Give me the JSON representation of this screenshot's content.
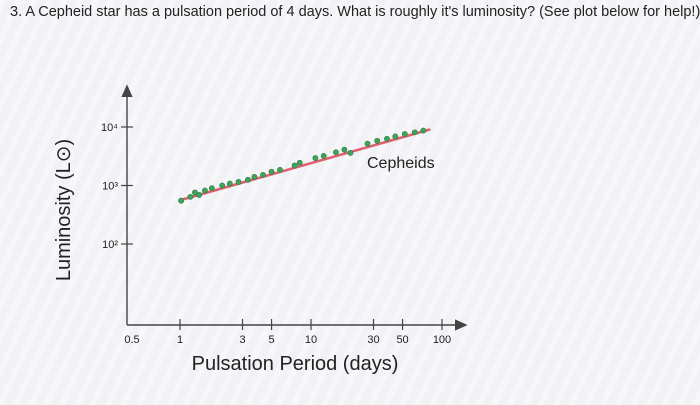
{
  "question": {
    "text": "3. A Cepheid star has a pulsation period of 4 days. What is roughly it's luminosity? (See plot below for help!)"
  },
  "chart_data": {
    "type": "scatter",
    "title": "",
    "xlabel": "Pulsation Period (days)",
    "ylabel": "Luminosity (L⊙)",
    "x_scale": "log",
    "y_scale": "log",
    "xlim": [
      0.5,
      100
    ],
    "x_ticks": [
      {
        "value": 0.5,
        "label": "0.5"
      },
      {
        "value": 1,
        "label": "1"
      },
      {
        "value": 3,
        "label": "3"
      },
      {
        "value": 5,
        "label": "5"
      },
      {
        "value": 10,
        "label": "10"
      },
      {
        "value": 30,
        "label": "30"
      },
      {
        "value": 50,
        "label": "50"
      },
      {
        "value": 100,
        "label": "100"
      }
    ],
    "y_ticks": [
      {
        "value": 100,
        "label": "10²"
      },
      {
        "value": 1000,
        "label": "10³"
      },
      {
        "value": 10000,
        "label": "10⁴"
      }
    ],
    "colors": {
      "points": "#3fa35a",
      "fit_line": "#e0606e",
      "axis": "#444444"
    },
    "series": [
      {
        "name": "Cepheids",
        "points": [
          {
            "x": 1.02,
            "y": 550
          },
          {
            "x": 1.2,
            "y": 640
          },
          {
            "x": 1.3,
            "y": 760
          },
          {
            "x": 1.4,
            "y": 690
          },
          {
            "x": 1.55,
            "y": 820
          },
          {
            "x": 1.75,
            "y": 900
          },
          {
            "x": 2.1,
            "y": 1000
          },
          {
            "x": 2.4,
            "y": 1080
          },
          {
            "x": 2.8,
            "y": 1150
          },
          {
            "x": 3.3,
            "y": 1250
          },
          {
            "x": 3.7,
            "y": 1400
          },
          {
            "x": 4.3,
            "y": 1520
          },
          {
            "x": 5.0,
            "y": 1720
          },
          {
            "x": 5.8,
            "y": 1850
          },
          {
            "x": 7.5,
            "y": 2200
          },
          {
            "x": 8.2,
            "y": 2450
          },
          {
            "x": 10.8,
            "y": 2950
          },
          {
            "x": 12.5,
            "y": 3200
          },
          {
            "x": 15.5,
            "y": 3700
          },
          {
            "x": 18.0,
            "y": 4100
          },
          {
            "x": 20.0,
            "y": 3600
          },
          {
            "x": 27.0,
            "y": 5200
          },
          {
            "x": 32.0,
            "y": 5800
          },
          {
            "x": 38.0,
            "y": 6300
          },
          {
            "x": 44.0,
            "y": 6900
          },
          {
            "x": 52.0,
            "y": 7600
          },
          {
            "x": 62.0,
            "y": 8100
          },
          {
            "x": 72.0,
            "y": 8700
          }
        ],
        "fit": [
          {
            "x": 1.0,
            "y": 560
          },
          {
            "x": 80.0,
            "y": 9000
          }
        ]
      }
    ]
  }
}
